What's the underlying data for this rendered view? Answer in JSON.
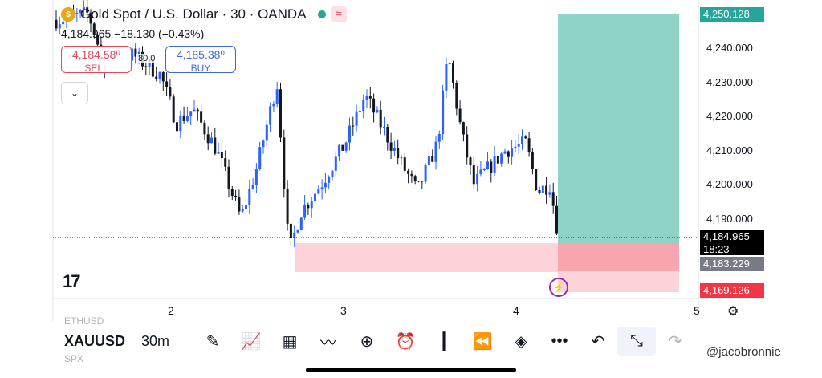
{
  "header": {
    "title": "Gold Spot / U.S. Dollar · 30 · OANDA",
    "coin_icon": "gold-coin-icon",
    "wave_icon": "≈",
    "ohlc": "4,184.965  −18.130 (−0.43%)"
  },
  "trade": {
    "sell_price": "4,184.58⁰",
    "sell_label": "SELL",
    "buy_price": "4,185.38⁰",
    "buy_label": "BUY",
    "spread": "80.0"
  },
  "price_axis": {
    "ticks": [
      "4,240.000",
      "4,230.000",
      "4,220.000",
      "4,210.000",
      "4,200.000",
      "4,190.000"
    ],
    "tp_tag": "4,250.128",
    "current_tag": "4,184.965",
    "countdown": "18:23",
    "entry_tag": "4,183.229",
    "sl_tag": "4,169.126"
  },
  "time_axis": {
    "ticks": [
      "2",
      "3",
      "4",
      "5"
    ]
  },
  "logo": "17",
  "bottom_bar": {
    "symbol": "XAUUSD",
    "timeframe": "30m",
    "under_top": "ETHUSD",
    "under_bottom": "SPX"
  },
  "watermark": "@jacobronnie",
  "colors": {
    "up": "#2962ff",
    "down": "#131722",
    "tp_zone": "#8fd3c6",
    "sl_zone": "#f7a5ae",
    "zone_light": "#fbd3d9",
    "tp_tag": "#26a69a",
    "sl_tag": "#f23645"
  }
}
